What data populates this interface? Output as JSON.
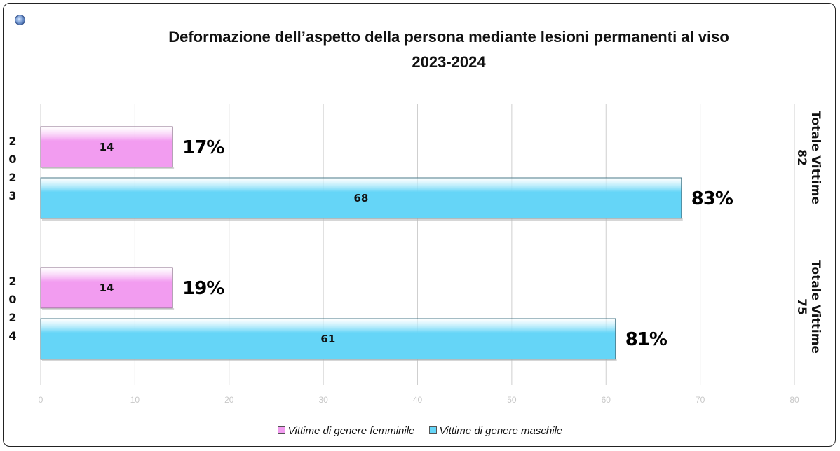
{
  "title_line1": "Deformazione dell’aspetto della persona mediante lesioni permanenti al  viso",
  "title_line2": "2023-2024",
  "colors": {
    "female": "#f29cf0",
    "male": "#65d5f7",
    "grid": "#cfcfcf"
  },
  "legend": {
    "female": "Vittime di genere femminile",
    "male": "Vittime di genere maschile"
  },
  "chart_data": {
    "type": "bar",
    "orientation": "horizontal",
    "title": "Deformazione dell’aspetto della persona mediante lesioni permanenti al  viso 2023-2024",
    "categories": [
      "2023",
      "2024"
    ],
    "series": [
      {
        "name": "Vittime di genere femminile",
        "values": [
          14,
          14
        ],
        "percent_labels": [
          "17%",
          "19%"
        ]
      },
      {
        "name": "Vittime di genere maschile",
        "values": [
          68,
          61
        ],
        "percent_labels": [
          "83%",
          "81%"
        ]
      }
    ],
    "totals": [
      {
        "label": "Totale Vittime",
        "value": "82"
      },
      {
        "label": "Totale Vittime",
        "value": "75"
      }
    ],
    "xlim": [
      0,
      80
    ],
    "xticks": [
      0,
      10,
      20,
      30,
      40,
      50,
      60,
      70,
      80
    ],
    "grid": true,
    "legend_position": "bottom"
  }
}
